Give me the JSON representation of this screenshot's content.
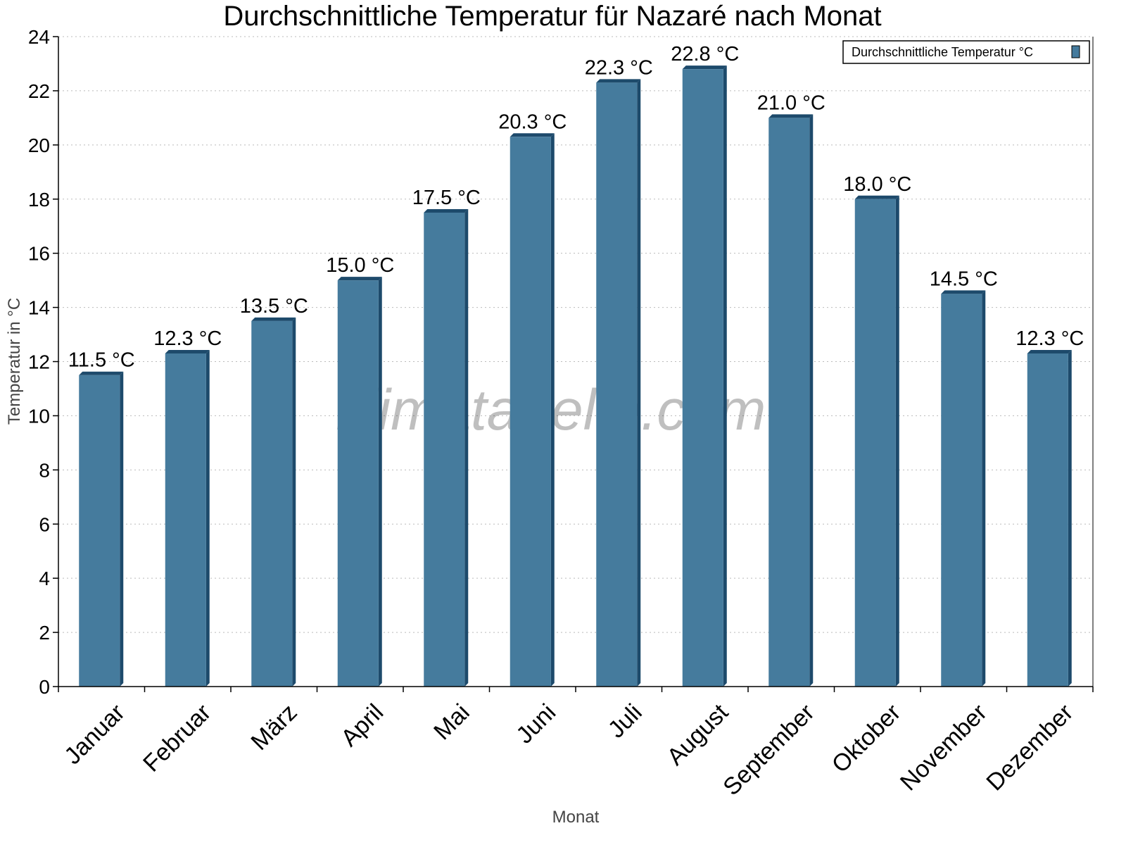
{
  "chart_data": {
    "type": "bar",
    "title": "Durchschnittliche Temperatur für Nazaré nach Monat",
    "xlabel": "Monat",
    "ylabel": "Temperatur in °C",
    "ylim": [
      0,
      24
    ],
    "yticks": [
      0,
      2,
      4,
      6,
      8,
      10,
      12,
      14,
      16,
      18,
      20,
      22,
      24
    ],
    "grid": true,
    "legend_placement": "top-right",
    "categories": [
      "Januar",
      "Februar",
      "März",
      "April",
      "Mai",
      "Juni",
      "Juli",
      "August",
      "September",
      "Oktober",
      "November",
      "Dezember"
    ],
    "series": [
      {
        "name": "Durchschnittliche Temperatur °C",
        "values": [
          11.5,
          12.3,
          13.5,
          15.0,
          17.5,
          20.3,
          22.3,
          22.8,
          21.0,
          18.0,
          14.5,
          12.3
        ],
        "labels": [
          "11.5 °C",
          "12.3 °C",
          "13.5 °C",
          "15.0 °C",
          "17.5 °C",
          "20.3 °C",
          "22.3 °C",
          "22.8 °C",
          "21.0 °C",
          "18.0 °C",
          "14.5 °C",
          "12.3 °C"
        ],
        "color": "#457b9d",
        "edge_color": "#1d4a6b"
      }
    ],
    "watermark": "klimatabelle.com"
  }
}
